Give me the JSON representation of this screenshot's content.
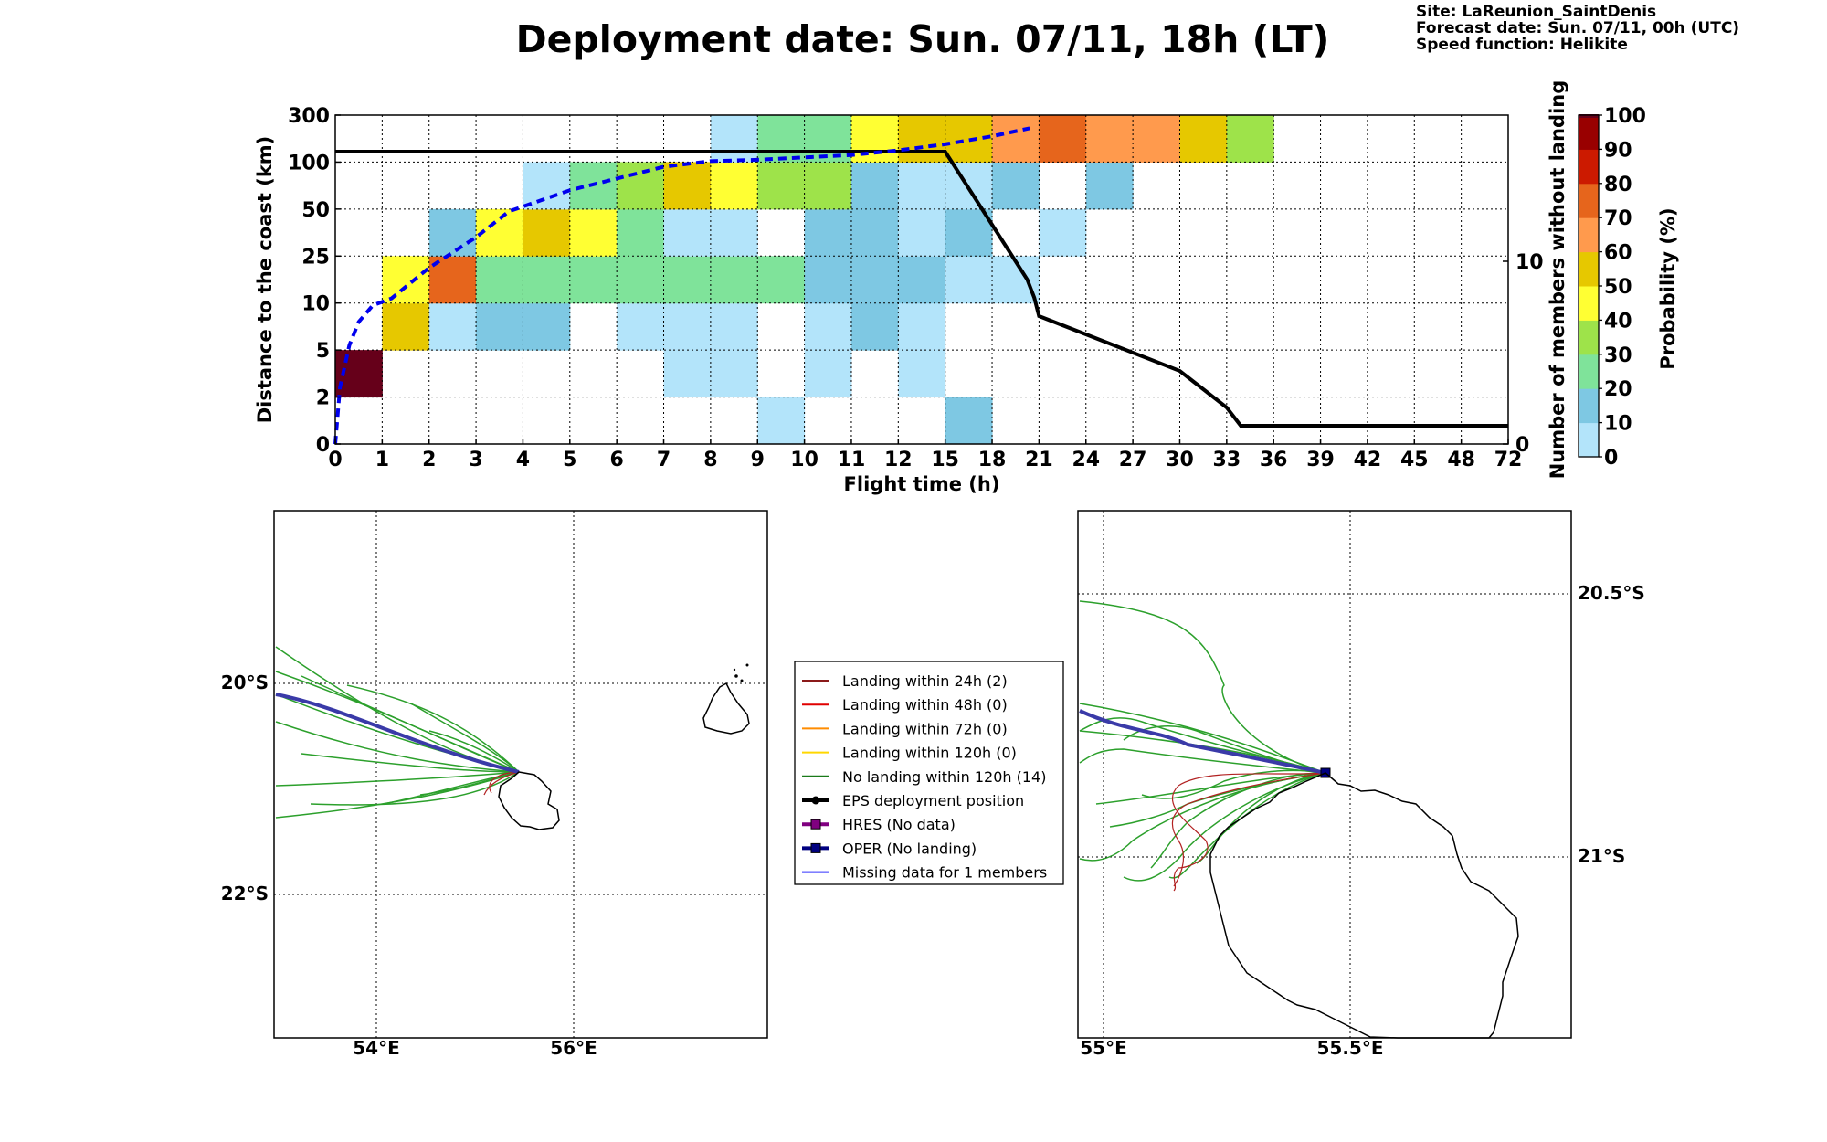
{
  "title": "Deployment date: Sun. 07/11, 18h (LT)",
  "info": {
    "site": "Site: LaReunion_SaintDenis",
    "forecast": "Forecast date: Sun. 07/11, 00h (UTC)",
    "speed": "Speed function: Helikite"
  },
  "colors": {
    "bin0": "#b3e4fa",
    "bin10": "#7ec8e3",
    "bin20": "#7fe39a",
    "bin30": "#9ee34a",
    "bin40": "#ffff33",
    "bin50": "#e6c800",
    "bin60": "#ff9a4d",
    "bin70": "#e6651c",
    "bin80": "#cc1a00",
    "bin90": "#990000",
    "bin100": "#66001a",
    "green_track": "#2ca02c",
    "red_track": "#b22222",
    "oper": "#000080",
    "mean_curve": "#0000ee"
  },
  "chart_data": [
    {
      "type": "heatmap",
      "xlabel": "Flight time (h)",
      "ylabel": "Distance to the coast (km)",
      "y2label": "Number of members without landing",
      "colorbar_label": "Probability (%)",
      "x_ticks": [
        "0",
        "1",
        "2",
        "3",
        "4",
        "5",
        "6",
        "7",
        "8",
        "9",
        "10",
        "11",
        "12",
        "15",
        "18",
        "21",
        "24",
        "27",
        "30",
        "33",
        "36",
        "39",
        "42",
        "45",
        "48",
        "72"
      ],
      "y_ticks": [
        "0",
        "2",
        "5",
        "10",
        "25",
        "50",
        "100",
        "300"
      ],
      "y2_ticks": [
        "0",
        "10"
      ],
      "y2lim": [
        0,
        18
      ],
      "colorbar_ticks": [
        "0",
        "10",
        "20",
        "30",
        "40",
        "50",
        "60",
        "70",
        "80",
        "90",
        "100"
      ],
      "cells": [
        {
          "x": 0,
          "y": 1,
          "p": 100
        },
        {
          "x": 1,
          "y": 2,
          "p": 50
        },
        {
          "x": 1,
          "y": 3,
          "p": 40
        },
        {
          "x": 2,
          "y": 2,
          "p": 5
        },
        {
          "x": 2,
          "y": 3,
          "p": 70
        },
        {
          "x": 2,
          "y": 4,
          "p": 15
        },
        {
          "x": 3,
          "y": 2,
          "p": 15
        },
        {
          "x": 3,
          "y": 3,
          "p": 20
        },
        {
          "x": 3,
          "y": 4,
          "p": 40
        },
        {
          "x": 4,
          "y": 2,
          "p": 15
        },
        {
          "x": 4,
          "y": 3,
          "p": 20
        },
        {
          "x": 4,
          "y": 4,
          "p": 50
        },
        {
          "x": 4,
          "y": 5,
          "p": 5
        },
        {
          "x": 5,
          "y": 3,
          "p": 20
        },
        {
          "x": 5,
          "y": 4,
          "p": 40
        },
        {
          "x": 5,
          "y": 5,
          "p": 20
        },
        {
          "x": 6,
          "y": 2,
          "p": 5
        },
        {
          "x": 6,
          "y": 3,
          "p": 20
        },
        {
          "x": 6,
          "y": 4,
          "p": 20
        },
        {
          "x": 6,
          "y": 5,
          "p": 30
        },
        {
          "x": 7,
          "y": 1,
          "p": 5
        },
        {
          "x": 7,
          "y": 2,
          "p": 5
        },
        {
          "x": 7,
          "y": 3,
          "p": 20
        },
        {
          "x": 7,
          "y": 4,
          "p": 5
        },
        {
          "x": 7,
          "y": 5,
          "p": 50
        },
        {
          "x": 8,
          "y": 1,
          "p": 5
        },
        {
          "x": 8,
          "y": 2,
          "p": 5
        },
        {
          "x": 8,
          "y": 3,
          "p": 20
        },
        {
          "x": 8,
          "y": 4,
          "p": 5
        },
        {
          "x": 8,
          "y": 5,
          "p": 40
        },
        {
          "x": 8,
          "y": 6,
          "p": 5
        },
        {
          "x": 9,
          "y": 0,
          "p": 5
        },
        {
          "x": 9,
          "y": 3,
          "p": 20
        },
        {
          "x": 9,
          "y": 5,
          "p": 30
        },
        {
          "x": 9,
          "y": 6,
          "p": 20
        },
        {
          "x": 10,
          "y": 1,
          "p": 5
        },
        {
          "x": 10,
          "y": 2,
          "p": 5
        },
        {
          "x": 10,
          "y": 3,
          "p": 15
        },
        {
          "x": 10,
          "y": 4,
          "p": 15
        },
        {
          "x": 10,
          "y": 5,
          "p": 30
        },
        {
          "x": 10,
          "y": 6,
          "p": 20
        },
        {
          "x": 11,
          "y": 2,
          "p": 15
        },
        {
          "x": 11,
          "y": 3,
          "p": 15
        },
        {
          "x": 11,
          "y": 4,
          "p": 15
        },
        {
          "x": 11,
          "y": 5,
          "p": 15
        },
        {
          "x": 11,
          "y": 6,
          "p": 40
        },
        {
          "x": 12,
          "y": 1,
          "p": 5
        },
        {
          "x": 12,
          "y": 2,
          "p": 5
        },
        {
          "x": 12,
          "y": 3,
          "p": 15
        },
        {
          "x": 12,
          "y": 4,
          "p": 5
        },
        {
          "x": 12,
          "y": 5,
          "p": 5
        },
        {
          "x": 12,
          "y": 6,
          "p": 50
        },
        {
          "x": 13,
          "y": 0,
          "p": 15
        },
        {
          "x": 13,
          "y": 3,
          "p": 5
        },
        {
          "x": 13,
          "y": 4,
          "p": 15
        },
        {
          "x": 13,
          "y": 5,
          "p": 5
        },
        {
          "x": 13,
          "y": 6,
          "p": 50
        },
        {
          "x": 14,
          "y": 3,
          "p": 5
        },
        {
          "x": 14,
          "y": 5,
          "p": 15
        },
        {
          "x": 14,
          "y": 6,
          "p": 60
        },
        {
          "x": 15,
          "y": 4,
          "p": 5
        },
        {
          "x": 15,
          "y": 6,
          "p": 70
        },
        {
          "x": 16,
          "y": 5,
          "p": 15
        },
        {
          "x": 16,
          "y": 6,
          "p": 60
        },
        {
          "x": 17,
          "y": 6,
          "p": 60
        },
        {
          "x": 18,
          "y": 6,
          "p": 50
        },
        {
          "x": 19,
          "y": 6,
          "p": 30
        }
      ],
      "mean_curve": [
        [
          0,
          0
        ],
        [
          0.1,
          1.2
        ],
        [
          0.3,
          2.1
        ],
        [
          0.5,
          2.6
        ],
        [
          0.8,
          2.95
        ],
        [
          1.2,
          3.1
        ],
        [
          2,
          3.75
        ],
        [
          3,
          4.4
        ],
        [
          3.7,
          4.95
        ],
        [
          5,
          5.4
        ],
        [
          6,
          5.65
        ],
        [
          7,
          5.9
        ],
        [
          8,
          6.02
        ],
        [
          9,
          6.05
        ],
        [
          10,
          6.1
        ],
        [
          11,
          6.15
        ],
        [
          12,
          6.25
        ],
        [
          13,
          6.38
        ],
        [
          14,
          6.55
        ],
        [
          14.8,
          6.72
        ]
      ],
      "members_without_landing": [
        [
          0,
          16
        ],
        [
          13,
          16
        ],
        [
          13.25,
          15
        ],
        [
          13.5,
          14
        ],
        [
          13.75,
          13
        ],
        [
          14,
          12
        ],
        [
          14.25,
          11
        ],
        [
          14.5,
          10
        ],
        [
          14.75,
          9
        ],
        [
          14.9,
          8
        ],
        [
          15,
          7
        ],
        [
          16,
          6
        ],
        [
          17,
          5
        ],
        [
          18,
          4
        ],
        [
          18.5,
          3
        ],
        [
          19,
          2
        ],
        [
          19.3,
          1
        ],
        [
          25,
          1
        ]
      ]
    }
  ],
  "left_map": {
    "lon_labels": [
      "54°E",
      "56°E"
    ],
    "lat_labels": [
      "20°S",
      "22°S"
    ]
  },
  "right_map": {
    "lon_labels": [
      "55°E",
      "55.5°E"
    ],
    "lat_labels": [
      "20.5°S",
      "21°S"
    ]
  },
  "legend": [
    {
      "label": "Landing within 24h (2)",
      "color": "#8b1a1a",
      "marker": "none"
    },
    {
      "label": "Landing within 48h (0)",
      "color": "#e00000",
      "marker": "none"
    },
    {
      "label": "Landing within 72h (0)",
      "color": "#ff8c00",
      "marker": "none"
    },
    {
      "label": "Landing within 120h (0)",
      "color": "#ffd700",
      "marker": "none"
    },
    {
      "label": "No landing within 120h (14)",
      "color": "#1a7a1a",
      "marker": "none"
    },
    {
      "label": "EPS deployment position",
      "color": "#000000",
      "marker": "circle"
    },
    {
      "label": "HRES (No data)",
      "color": "#800080",
      "marker": "square"
    },
    {
      "label": "OPER (No landing)",
      "color": "#000080",
      "marker": "square"
    },
    {
      "label": "Missing data for 1 members",
      "color": "#3333ff",
      "marker": "none"
    }
  ]
}
